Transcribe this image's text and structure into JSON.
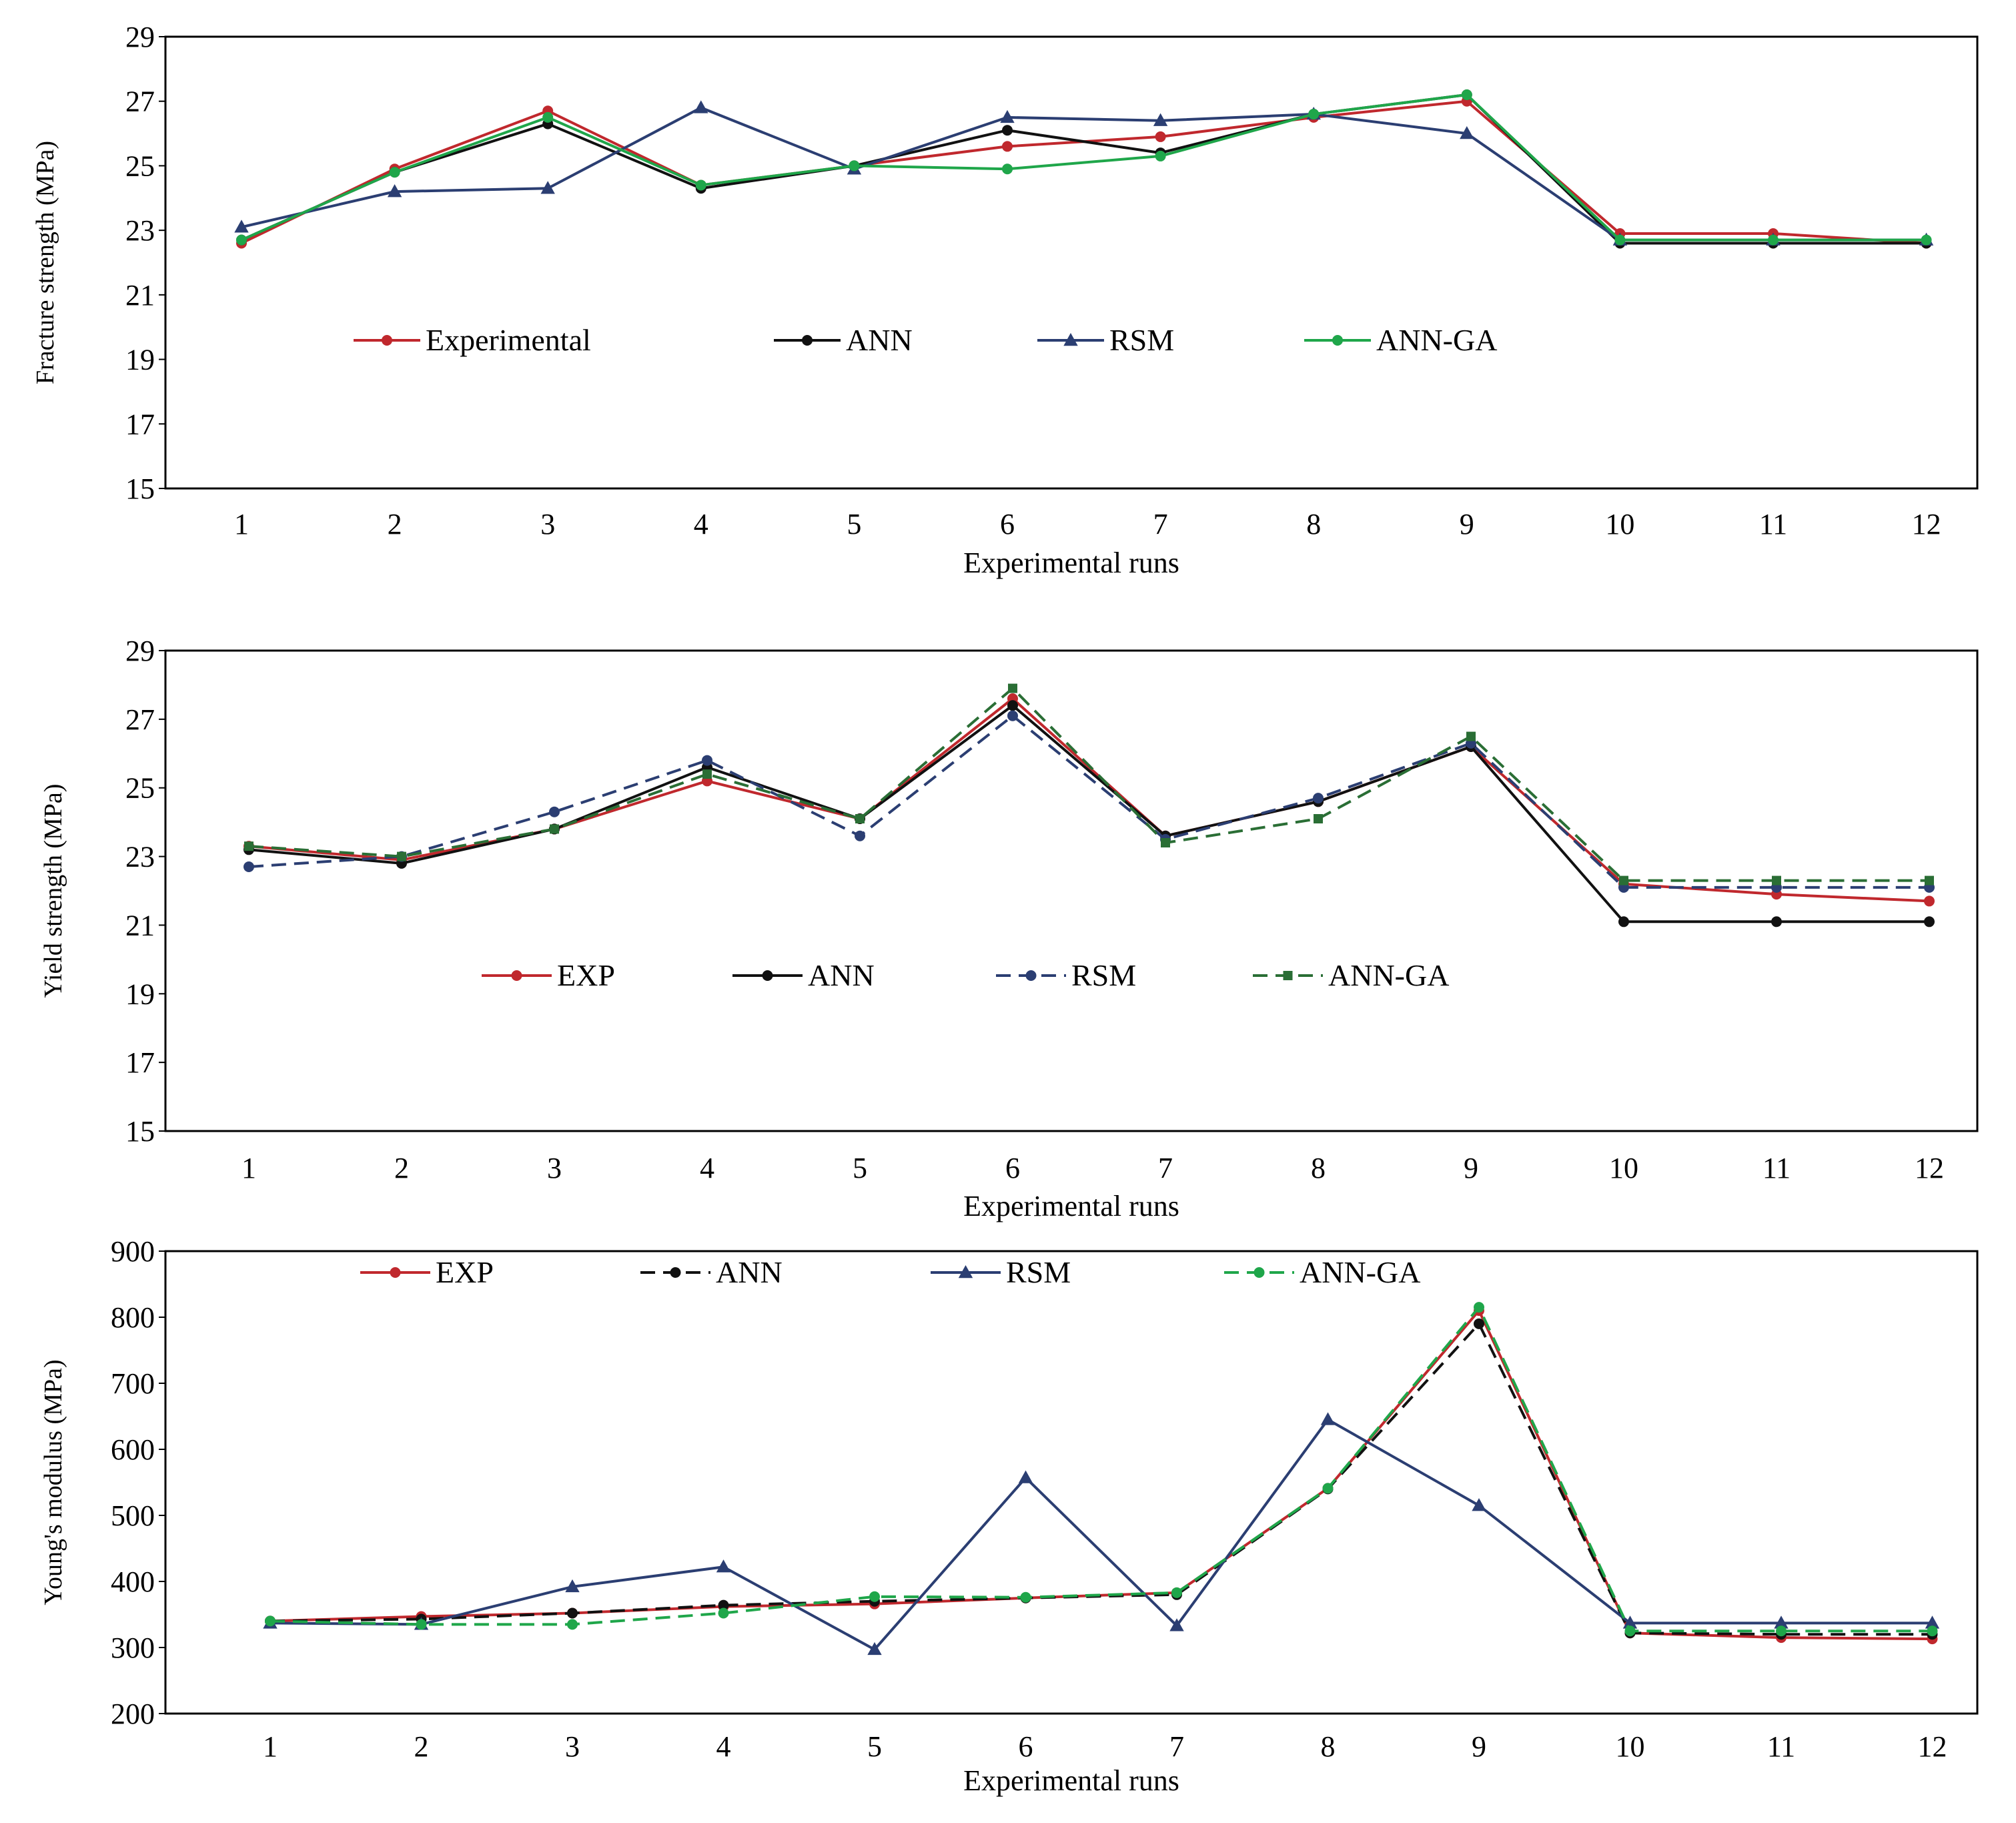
{
  "figure": {
    "colors": {
      "red": "#c0282d",
      "black": "#111111",
      "navy": "#2b3e72",
      "green": "#1fa64a",
      "darkgreen": "#2a6e35"
    }
  },
  "chart_data": [
    {
      "type": "line",
      "title": "",
      "xlabel": "Experimental runs",
      "ylabel": "Fracture strength (MPa)",
      "ylim": [
        15,
        29
      ],
      "yticks": [
        15,
        17,
        19,
        21,
        23,
        25,
        27,
        29
      ],
      "categories": [
        "1",
        "2",
        "3",
        "4",
        "5",
        "6",
        "7",
        "8",
        "9",
        "10",
        "11",
        "12"
      ],
      "legend_position": "middle-center",
      "series": [
        {
          "name": "Experimental",
          "color": "#c0282d",
          "dash": "solid",
          "marker": "circle",
          "values": [
            22.6,
            24.9,
            26.7,
            24.4,
            25.0,
            25.6,
            25.9,
            26.5,
            27.0,
            22.9,
            22.9,
            22.6
          ]
        },
        {
          "name": "ANN",
          "color": "#111111",
          "dash": "solid",
          "marker": "circle",
          "values": [
            22.7,
            24.8,
            26.3,
            24.3,
            25.0,
            26.1,
            25.4,
            26.6,
            27.2,
            22.6,
            22.6,
            22.6
          ]
        },
        {
          "name": "RSM",
          "color": "#2b3e72",
          "dash": "solid",
          "marker": "triangle",
          "values": [
            23.1,
            24.2,
            24.3,
            26.8,
            24.9,
            26.5,
            26.4,
            26.6,
            26.0,
            22.7,
            22.7,
            22.7
          ]
        },
        {
          "name": "ANN-GA",
          "color": "#1fa64a",
          "dash": "solid",
          "marker": "circle",
          "values": [
            22.7,
            24.8,
            26.5,
            24.4,
            25.0,
            24.9,
            25.3,
            26.6,
            27.2,
            22.7,
            22.7,
            22.7
          ]
        }
      ]
    },
    {
      "type": "line",
      "title": "",
      "xlabel": "Experimental runs",
      "ylabel": "Yield strength (MPa)",
      "ylim": [
        15,
        29
      ],
      "yticks": [
        15,
        17,
        19,
        21,
        23,
        25,
        27,
        29
      ],
      "categories": [
        "1",
        "2",
        "3",
        "4",
        "5",
        "6",
        "7",
        "8",
        "9",
        "10",
        "11",
        "12"
      ],
      "legend_position": "middle-center",
      "series": [
        {
          "name": "EXP",
          "color": "#c0282d",
          "dash": "solid",
          "marker": "circle",
          "values": [
            23.3,
            22.9,
            23.8,
            25.2,
            24.1,
            27.6,
            23.6,
            24.6,
            26.2,
            22.2,
            21.9,
            21.7
          ]
        },
        {
          "name": "ANN",
          "color": "#111111",
          "dash": "solid",
          "marker": "circle",
          "values": [
            23.2,
            22.8,
            23.8,
            25.6,
            24.1,
            27.4,
            23.6,
            24.6,
            26.2,
            21.1,
            21.1,
            21.1
          ]
        },
        {
          "name": "RSM",
          "color": "#2b3e72",
          "dash": "dashed",
          "marker": "circle",
          "values": [
            22.7,
            23.0,
            24.3,
            25.8,
            23.6,
            27.1,
            23.5,
            24.7,
            26.3,
            22.1,
            22.1,
            22.1
          ]
        },
        {
          "name": "ANN-GA",
          "color": "#2a6e35",
          "dash": "dashed",
          "marker": "square",
          "values": [
            23.3,
            23.0,
            23.8,
            25.4,
            24.1,
            27.9,
            23.4,
            24.1,
            26.5,
            22.3,
            22.3,
            22.3
          ]
        }
      ]
    },
    {
      "type": "line",
      "title": "",
      "xlabel": "Experimental runs",
      "ylabel": "Young's modulus (MPa)",
      "ylim": [
        200,
        900
      ],
      "yticks": [
        200,
        300,
        400,
        500,
        600,
        700,
        800,
        900
      ],
      "categories": [
        "1",
        "2",
        "3",
        "4",
        "5",
        "6",
        "7",
        "8",
        "9",
        "10",
        "11",
        "12"
      ],
      "legend_position": "top",
      "series": [
        {
          "name": "EXP",
          "color": "#c0282d",
          "dash": "solid",
          "marker": "circle",
          "values": [
            340,
            347,
            352,
            362,
            366,
            375,
            383,
            541,
            810,
            322,
            315,
            313
          ]
        },
        {
          "name": "ANN",
          "color": "#111111",
          "dash": "dashed",
          "marker": "circle",
          "values": [
            340,
            343,
            352,
            364,
            370,
            375,
            380,
            540,
            790,
            322,
            320,
            320
          ]
        },
        {
          "name": "RSM",
          "color": "#2b3e72",
          "dash": "solid",
          "marker": "triangle",
          "values": [
            337,
            335,
            392,
            422,
            297,
            557,
            333,
            645,
            515,
            337,
            337,
            337
          ]
        },
        {
          "name": "ANN-GA",
          "color": "#1fa64a",
          "dash": "dashed",
          "marker": "circle",
          "values": [
            340,
            335,
            335,
            352,
            377,
            376,
            383,
            541,
            815,
            325,
            325,
            325
          ]
        }
      ]
    }
  ]
}
